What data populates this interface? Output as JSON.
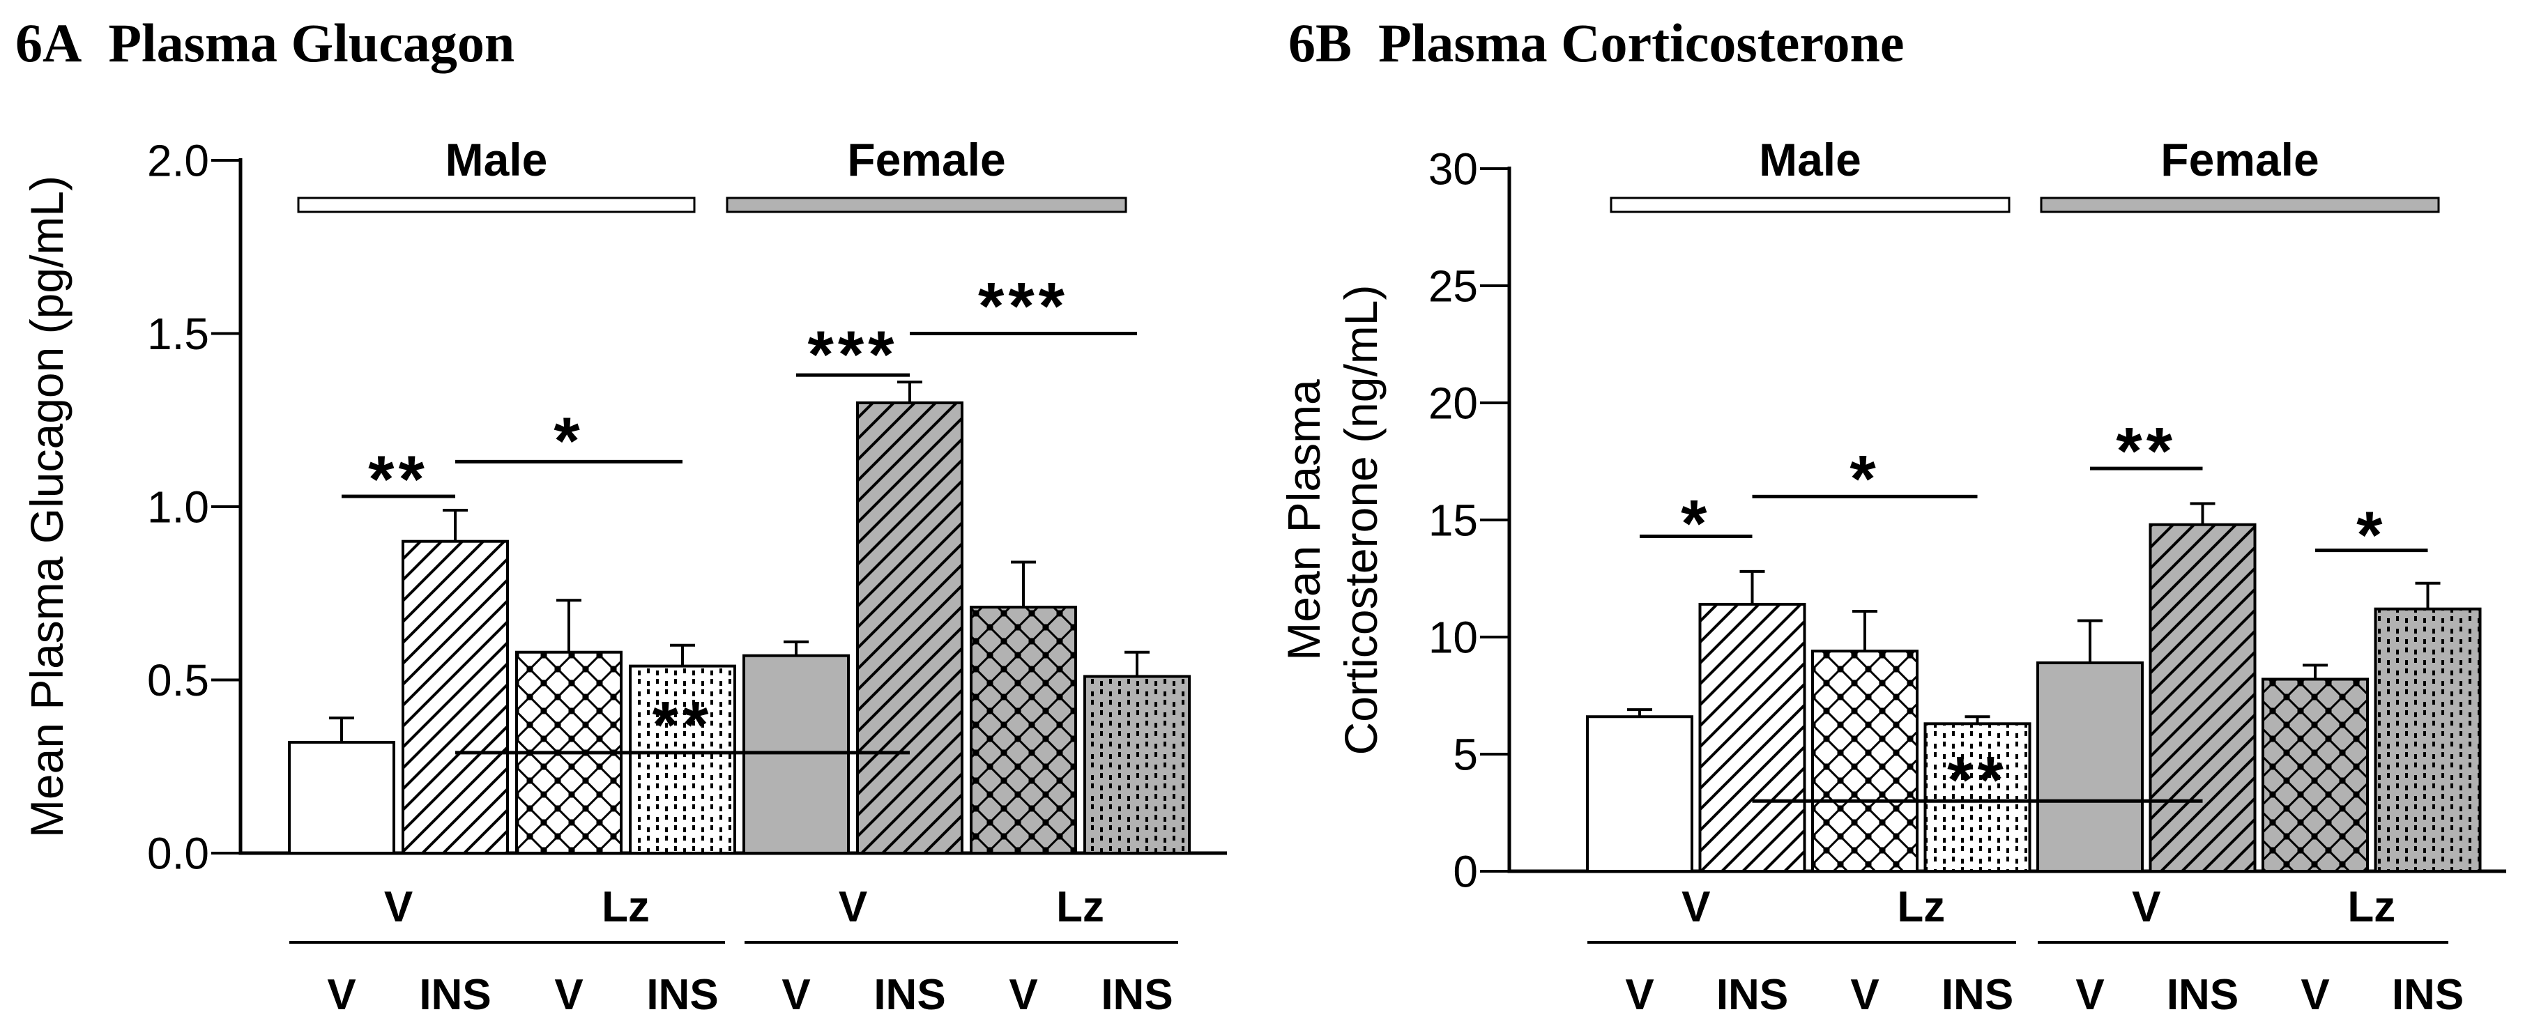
{
  "figure": {
    "background": "#ffffff",
    "ink_color": "#000000",
    "gray_fill": "#b2b2b2",
    "white_fill": "#ffffff"
  },
  "chart_data": [
    {
      "id": "plasma-glucagon",
      "type": "bar",
      "panel_label": "6A",
      "title": "Plasma Glucagon",
      "ylabel_lines": [
        "Mean Plasma Glucagon (pg/mL)"
      ],
      "ylim": [
        0,
        2.0
      ],
      "ytick_values": [
        0,
        0.5,
        1.0,
        1.5,
        2.0
      ],
      "ytick_labels": [
        "0.0",
        "0.5",
        "1.0",
        "1.5",
        "2.0"
      ],
      "grid": "off",
      "sex_groups": [
        {
          "label": "Male",
          "legend_fill": "#ffffff"
        },
        {
          "label": "Female",
          "legend_fill": "#b2b2b2"
        }
      ],
      "group_row_labels": [
        "V",
        "Lz",
        "V",
        "Lz"
      ],
      "categories": [
        "V",
        "INS",
        "V",
        "INS",
        "V",
        "INS",
        "V",
        "INS"
      ],
      "bars": [
        {
          "sex": "Male",
          "group": "V",
          "treatment": "V",
          "value": 0.32,
          "error": 0.07,
          "pattern": "plain",
          "fill": "white"
        },
        {
          "sex": "Male",
          "group": "V",
          "treatment": "INS",
          "value": 0.9,
          "error": 0.09,
          "pattern": "diagonal",
          "fill": "white"
        },
        {
          "sex": "Male",
          "group": "Lz",
          "treatment": "V",
          "value": 0.58,
          "error": 0.15,
          "pattern": "crosshatch",
          "fill": "white"
        },
        {
          "sex": "Male",
          "group": "Lz",
          "treatment": "INS",
          "value": 0.54,
          "error": 0.06,
          "pattern": "dotted",
          "fill": "white"
        },
        {
          "sex": "Female",
          "group": "V",
          "treatment": "V",
          "value": 0.57,
          "error": 0.04,
          "pattern": "plain",
          "fill": "gray"
        },
        {
          "sex": "Female",
          "group": "V",
          "treatment": "INS",
          "value": 1.3,
          "error": 0.06,
          "pattern": "diagonal",
          "fill": "gray"
        },
        {
          "sex": "Female",
          "group": "Lz",
          "treatment": "V",
          "value": 0.71,
          "error": 0.13,
          "pattern": "crosshatch",
          "fill": "gray"
        },
        {
          "sex": "Female",
          "group": "Lz",
          "treatment": "INS",
          "value": 0.51,
          "error": 0.07,
          "pattern": "dotted",
          "fill": "gray"
        }
      ],
      "significance": [
        {
          "from_bar": 0,
          "to_bar": 1,
          "line_y": 1.03,
          "label": "**",
          "label_y": 1.11
        },
        {
          "from_bar": 1,
          "to_bar": 3,
          "line_y": 1.13,
          "label": "*",
          "label_y": 1.22
        },
        {
          "from_bar": 4,
          "to_bar": 5,
          "line_y": 1.38,
          "label": "***",
          "label_y": 1.47
        },
        {
          "from_bar": 5,
          "to_bar": 7,
          "line_y": 1.5,
          "label": "***",
          "label_y": 1.61
        },
        {
          "from_bar": 1,
          "to_bar": 5,
          "line_y": 0.29,
          "label": "**",
          "label_y": 0.4
        }
      ]
    },
    {
      "id": "plasma-corticosterone",
      "type": "bar",
      "panel_label": "6B",
      "title": "Plasma Corticosterone",
      "ylabel_lines": [
        "Mean Plasma",
        "Corticosterone (ng/mL)"
      ],
      "ylim": [
        0,
        30
      ],
      "ytick_values": [
        0,
        5,
        10,
        15,
        20,
        25,
        30
      ],
      "ytick_labels": [
        "0",
        "5",
        "10",
        "15",
        "20",
        "25",
        "30"
      ],
      "grid": "off",
      "sex_groups": [
        {
          "label": "Male",
          "legend_fill": "#ffffff"
        },
        {
          "label": "Female",
          "legend_fill": "#b2b2b2"
        }
      ],
      "group_row_labels": [
        "V",
        "Lz",
        "V",
        "Lz"
      ],
      "categories": [
        "V",
        "INS",
        "V",
        "INS",
        "V",
        "INS",
        "V",
        "INS"
      ],
      "bars": [
        {
          "sex": "Male",
          "group": "V",
          "treatment": "V",
          "value": 6.6,
          "error": 0.3,
          "pattern": "plain",
          "fill": "white"
        },
        {
          "sex": "Male",
          "group": "V",
          "treatment": "INS",
          "value": 11.4,
          "error": 1.4,
          "pattern": "diagonal",
          "fill": "white"
        },
        {
          "sex": "Male",
          "group": "Lz",
          "treatment": "V",
          "value": 9.4,
          "error": 1.7,
          "pattern": "crosshatch",
          "fill": "white"
        },
        {
          "sex": "Male",
          "group": "Lz",
          "treatment": "INS",
          "value": 6.3,
          "error": 0.3,
          "pattern": "dotted",
          "fill": "white"
        },
        {
          "sex": "Female",
          "group": "V",
          "treatment": "V",
          "value": 8.9,
          "error": 1.8,
          "pattern": "plain",
          "fill": "gray"
        },
        {
          "sex": "Female",
          "group": "V",
          "treatment": "INS",
          "value": 14.8,
          "error": 0.9,
          "pattern": "diagonal",
          "fill": "gray"
        },
        {
          "sex": "Female",
          "group": "Lz",
          "treatment": "V",
          "value": 8.2,
          "error": 0.6,
          "pattern": "crosshatch",
          "fill": "gray"
        },
        {
          "sex": "Female",
          "group": "Lz",
          "treatment": "INS",
          "value": 11.2,
          "error": 1.1,
          "pattern": "dotted",
          "fill": "gray"
        }
      ],
      "significance": [
        {
          "from_bar": 0,
          "to_bar": 1,
          "line_y": 14.3,
          "label": "*",
          "label_y": 15.3
        },
        {
          "from_bar": 1,
          "to_bar": 3,
          "line_y": 16.0,
          "label": "*",
          "label_y": 17.2
        },
        {
          "from_bar": 4,
          "to_bar": 5,
          "line_y": 17.2,
          "label": "**",
          "label_y": 18.4
        },
        {
          "from_bar": 6,
          "to_bar": 7,
          "line_y": 13.7,
          "label": "*",
          "label_y": 14.8
        },
        {
          "from_bar": 1,
          "to_bar": 5,
          "line_y": 3.0,
          "label": "**",
          "label_y": 4.35
        }
      ]
    }
  ]
}
